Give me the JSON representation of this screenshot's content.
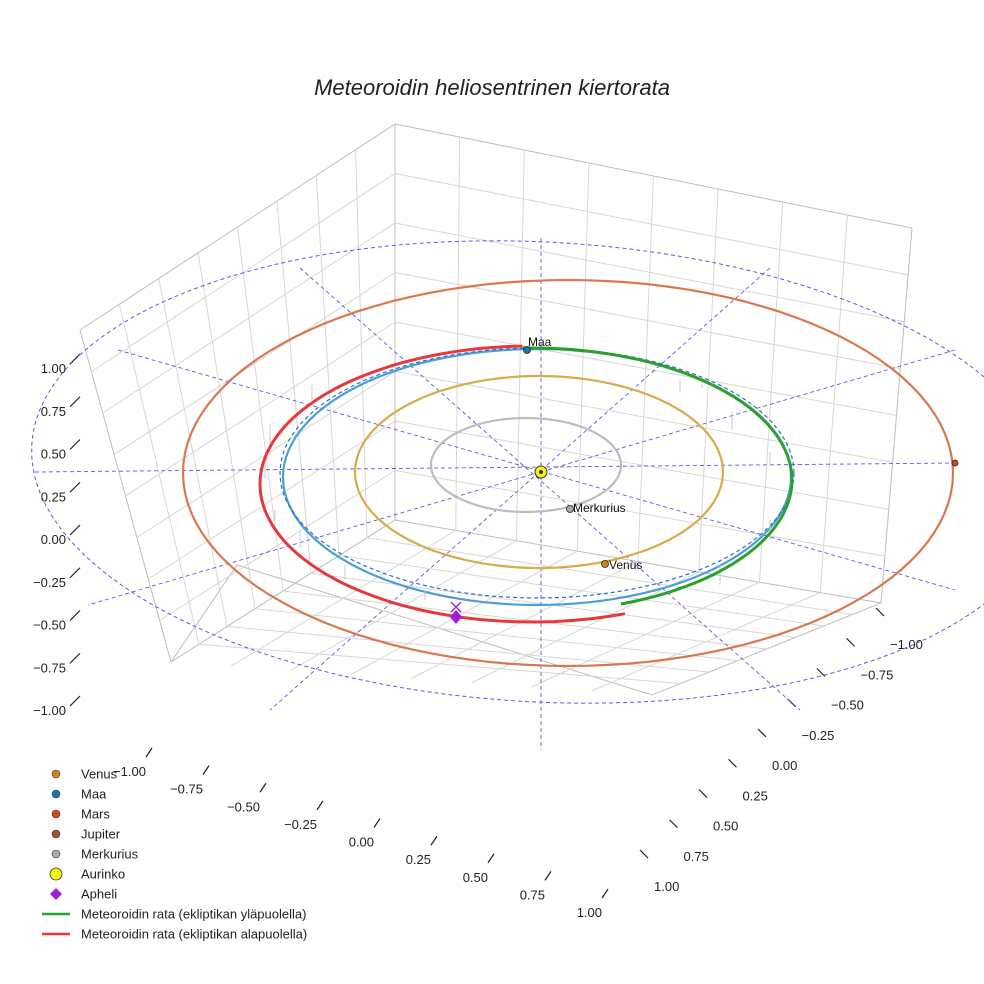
{
  "chart_data": {
    "type": "scatter3d",
    "title": "Meteoroidin heliosentrinen kiertorata",
    "x_ticks": [
      "−1.00",
      "−0.75",
      "−0.50",
      "−0.25",
      "0.00",
      "0.25",
      "0.50",
      "0.75",
      "1.00"
    ],
    "y_ticks": [
      "−1.00",
      "−0.75",
      "−0.50",
      "−0.25",
      "0.00",
      "0.25",
      "0.50",
      "0.75",
      "1.00"
    ],
    "z_ticks": [
      "1.00",
      "0.75",
      "0.50",
      "0.25",
      "0.00",
      "−0.25",
      "−0.50",
      "−0.75",
      "−1.00"
    ],
    "xlim": [
      -1.0,
      1.0
    ],
    "ylim": [
      -1.0,
      1.0
    ],
    "zlim": [
      -1.0,
      1.0
    ],
    "grid": true,
    "legend_position": "bottom-left",
    "planets": [
      {
        "name": "Venus",
        "color": "#d2821e",
        "label": "Venus"
      },
      {
        "name": "Maa",
        "color": "#1f6fbf",
        "label": "Maa"
      },
      {
        "name": "Mars",
        "color": "#d9461e"
      },
      {
        "name": "Jupiter",
        "color": "#a0522d"
      },
      {
        "name": "Merkurius",
        "color": "#b0a8a0",
        "label": "Merkurius"
      }
    ],
    "orbits": [
      {
        "body": "Merkurius",
        "color": "#bdbdbd"
      },
      {
        "body": "Venus",
        "color": "#d9a94a"
      },
      {
        "body": "Maa",
        "color": "#4b9fd5"
      },
      {
        "body": "Mars",
        "color": "#d9774f"
      }
    ],
    "sun": {
      "name": "Aurinko",
      "color": "#f2f21a"
    },
    "aphelion": {
      "name": "Apheli",
      "color": "#9b1fd6"
    },
    "meteoroid": {
      "above": {
        "name": "Meteoroidin rata (ekliptikan yläpuolella)",
        "color": "#2ca02c"
      },
      "below": {
        "name": "Meteoroidin rata (ekliptikan alapuolella)",
        "color": "#e8383b"
      }
    },
    "ecliptic_color": "#5b5be0"
  }
}
